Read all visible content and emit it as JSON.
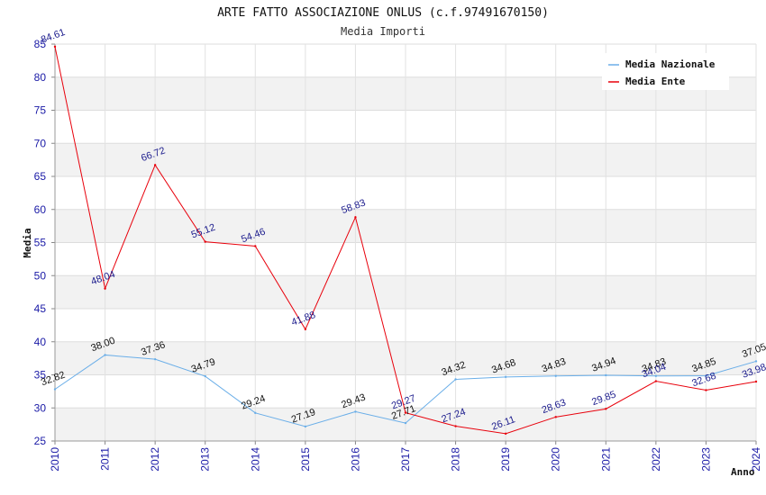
{
  "chart_data": {
    "type": "line",
    "title": "ARTE FATTO ASSOCIAZIONE ONLUS (c.f.97491670150)",
    "subtitle": "Media Importi",
    "xlabel": "Anno",
    "ylabel": "Media",
    "ylim": [
      25,
      85
    ],
    "yticks": [
      25,
      30,
      35,
      40,
      45,
      50,
      55,
      60,
      65,
      70,
      75,
      80,
      85
    ],
    "categories": [
      "2010",
      "2011",
      "2012",
      "2013",
      "2014",
      "2015",
      "2016",
      "2017",
      "2018",
      "2019",
      "2020",
      "2021",
      "2022",
      "2023",
      "2024"
    ],
    "legend_position": "top-right",
    "grid": true,
    "series": [
      {
        "name": "Media Nazionale",
        "color": "#6aaee8",
        "label_color": "#111111",
        "values": [
          32.82,
          38.0,
          37.36,
          34.79,
          29.24,
          27.19,
          29.43,
          27.71,
          34.32,
          34.68,
          34.83,
          34.94,
          34.83,
          34.85,
          37.05
        ],
        "labels": [
          "32.82",
          "38.00",
          "37.36",
          "34.79",
          "29.24",
          "27.19",
          "29.43",
          "27.71",
          "34.32",
          "34.68",
          "34.83",
          "34.94",
          "34.83",
          "34.85",
          "37.05"
        ]
      },
      {
        "name": "Media Ente",
        "color": "#e8000b",
        "label_color": "#1a1a8c",
        "values": [
          84.61,
          48.04,
          66.72,
          55.12,
          54.46,
          41.88,
          58.83,
          29.27,
          27.24,
          26.11,
          28.63,
          29.85,
          34.04,
          32.68,
          33.98
        ],
        "labels": [
          "84.61",
          "48.04",
          "66.72",
          "55.12",
          "54.46",
          "41.88",
          "58.83",
          "29.27",
          "27.24",
          "26.11",
          "28.63",
          "29.85",
          "34.04",
          "32.68",
          "33.98"
        ]
      }
    ]
  }
}
